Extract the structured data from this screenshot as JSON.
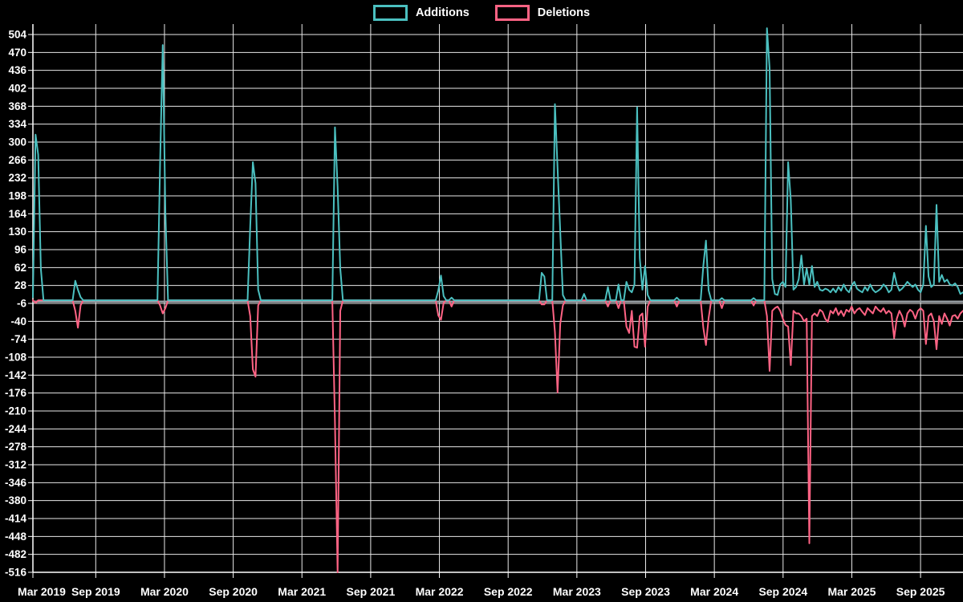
{
  "legend": {
    "items": [
      {
        "label": "Additions",
        "color": "#4BC0C0"
      },
      {
        "label": "Deletions",
        "color": "#FF6384"
      }
    ]
  },
  "colors": {
    "background": "#000000",
    "grid": "#e8e8e8",
    "axis": "#ffffff",
    "zero_line": "#9aa1a6",
    "text": "#ffffff",
    "additions": "#4BC0C0",
    "deletions": "#FF6384"
  },
  "chart_data": {
    "type": "line",
    "title": "",
    "xlabel": "",
    "ylabel": "",
    "legend_position": "top-center",
    "grid": true,
    "x_axis": {
      "tick_labels": [
        "Mar 2019",
        "Sep 2019",
        "Mar 2020",
        "Sep 2020",
        "Mar 2021",
        "Sep 2021",
        "Mar 2022",
        "Sep 2022",
        "Mar 2023",
        "Sep 2023",
        "Mar 2024",
        "Sep 2024",
        "Mar 2025",
        "Sep 2025"
      ],
      "unit": "week",
      "weeks_total": 352
    },
    "y_axis": {
      "tick_labels": [
        504,
        470,
        436,
        402,
        368,
        334,
        300,
        266,
        232,
        198,
        164,
        130,
        96,
        62,
        28,
        -6,
        -40,
        -74,
        -108,
        -142,
        -176,
        -210,
        -244,
        -278,
        -312,
        -346,
        -380,
        -414,
        -448,
        -482,
        -516
      ],
      "min": -516,
      "max": 504,
      "step": 34
    },
    "baseline": 0,
    "series": [
      {
        "name": "Additions",
        "color": "#4BC0C0",
        "default_value": 0,
        "points": [
          [
            0,
            6
          ],
          [
            1,
            314
          ],
          [
            2,
            276
          ],
          [
            3,
            60
          ],
          [
            16,
            37
          ],
          [
            17,
            20
          ],
          [
            18,
            6
          ],
          [
            48,
            260
          ],
          [
            49,
            484
          ],
          [
            50,
            166
          ],
          [
            82,
            140
          ],
          [
            83,
            262
          ],
          [
            84,
            222
          ],
          [
            85,
            20
          ],
          [
            114,
            328
          ],
          [
            115,
            215
          ],
          [
            116,
            60
          ],
          [
            153,
            19
          ],
          [
            154,
            47
          ],
          [
            155,
            8
          ],
          [
            158,
            5
          ],
          [
            192,
            52
          ],
          [
            193,
            45
          ],
          [
            197,
            372
          ],
          [
            198,
            250
          ],
          [
            199,
            131
          ],
          [
            200,
            10
          ],
          [
            208,
            12
          ],
          [
            217,
            25
          ],
          [
            221,
            30
          ],
          [
            224,
            35
          ],
          [
            225,
            20
          ],
          [
            226,
            15
          ],
          [
            227,
            30
          ],
          [
            228,
            366
          ],
          [
            229,
            80
          ],
          [
            230,
            20
          ],
          [
            231,
            65
          ],
          [
            232,
            10
          ],
          [
            243,
            5
          ],
          [
            253,
            65
          ],
          [
            254,
            113
          ],
          [
            255,
            19
          ],
          [
            260,
            4
          ],
          [
            272,
            4
          ],
          [
            277,
            516
          ],
          [
            278,
            440
          ],
          [
            279,
            40
          ],
          [
            280,
            12
          ],
          [
            281,
            10
          ],
          [
            282,
            30
          ],
          [
            283,
            35
          ],
          [
            284,
            25
          ],
          [
            285,
            262
          ],
          [
            286,
            190
          ],
          [
            287,
            20
          ],
          [
            288,
            25
          ],
          [
            289,
            40
          ],
          [
            290,
            85
          ],
          [
            291,
            30
          ],
          [
            292,
            60
          ],
          [
            293,
            30
          ],
          [
            294,
            65
          ],
          [
            295,
            25
          ],
          [
            296,
            35
          ],
          [
            297,
            20
          ],
          [
            298,
            18
          ],
          [
            299,
            22
          ],
          [
            300,
            20
          ],
          [
            301,
            15
          ],
          [
            302,
            22
          ],
          [
            303,
            15
          ],
          [
            304,
            25
          ],
          [
            305,
            18
          ],
          [
            306,
            30
          ],
          [
            307,
            20
          ],
          [
            308,
            15
          ],
          [
            309,
            28
          ],
          [
            310,
            35
          ],
          [
            311,
            22
          ],
          [
            312,
            18
          ],
          [
            313,
            15
          ],
          [
            314,
            25
          ],
          [
            315,
            18
          ],
          [
            316,
            30
          ],
          [
            317,
            20
          ],
          [
            318,
            15
          ],
          [
            319,
            18
          ],
          [
            320,
            22
          ],
          [
            321,
            30
          ],
          [
            322,
            25
          ],
          [
            323,
            15
          ],
          [
            324,
            20
          ],
          [
            325,
            52
          ],
          [
            326,
            30
          ],
          [
            327,
            18
          ],
          [
            328,
            22
          ],
          [
            329,
            28
          ],
          [
            330,
            35
          ],
          [
            331,
            30
          ],
          [
            332,
            25
          ],
          [
            333,
            30
          ],
          [
            334,
            20
          ],
          [
            335,
            15
          ],
          [
            336,
            30
          ],
          [
            337,
            141
          ],
          [
            338,
            45
          ],
          [
            339,
            25
          ],
          [
            340,
            30
          ],
          [
            341,
            181
          ],
          [
            342,
            35
          ],
          [
            343,
            48
          ],
          [
            344,
            35
          ],
          [
            345,
            39
          ],
          [
            346,
            30
          ],
          [
            347,
            28
          ],
          [
            348,
            32
          ],
          [
            349,
            25
          ],
          [
            350,
            12
          ],
          [
            351,
            15
          ]
        ]
      },
      {
        "name": "Deletions",
        "color": "#FF6384",
        "default_value": 0,
        "points": [
          [
            1,
            -5
          ],
          [
            16,
            -20
          ],
          [
            17,
            -52
          ],
          [
            18,
            -10
          ],
          [
            48,
            -10
          ],
          [
            49,
            -25
          ],
          [
            50,
            -15
          ],
          [
            82,
            -30
          ],
          [
            83,
            -131
          ],
          [
            84,
            -145
          ],
          [
            85,
            -10
          ],
          [
            114,
            -232
          ],
          [
            115,
            -516
          ],
          [
            116,
            -20
          ],
          [
            153,
            -29
          ],
          [
            154,
            -37
          ],
          [
            155,
            -5
          ],
          [
            158,
            -12
          ],
          [
            192,
            -8
          ],
          [
            193,
            -8
          ],
          [
            197,
            -60
          ],
          [
            198,
            -175
          ],
          [
            199,
            -45
          ],
          [
            200,
            -10
          ],
          [
            217,
            -12
          ],
          [
            221,
            -15
          ],
          [
            224,
            -50
          ],
          [
            225,
            -62
          ],
          [
            226,
            -20
          ],
          [
            227,
            -88
          ],
          [
            228,
            -90
          ],
          [
            229,
            -30
          ],
          [
            230,
            -25
          ],
          [
            231,
            -88
          ],
          [
            232,
            -12
          ],
          [
            243,
            -12
          ],
          [
            253,
            -52
          ],
          [
            254,
            -85
          ],
          [
            255,
            -34
          ],
          [
            260,
            -15
          ],
          [
            272,
            -10
          ],
          [
            277,
            -30
          ],
          [
            278,
            -134
          ],
          [
            279,
            -20
          ],
          [
            280,
            -15
          ],
          [
            281,
            -12
          ],
          [
            282,
            -20
          ],
          [
            283,
            -35
          ],
          [
            284,
            -47
          ],
          [
            285,
            -50
          ],
          [
            286,
            -123
          ],
          [
            287,
            -20
          ],
          [
            288,
            -25
          ],
          [
            289,
            -25
          ],
          [
            290,
            -30
          ],
          [
            291,
            -40
          ],
          [
            292,
            -35
          ],
          [
            293,
            -461
          ],
          [
            294,
            -30
          ],
          [
            295,
            -25
          ],
          [
            296,
            -30
          ],
          [
            297,
            -18
          ],
          [
            298,
            -22
          ],
          [
            299,
            -35
          ],
          [
            300,
            -41
          ],
          [
            301,
            -20
          ],
          [
            302,
            -25
          ],
          [
            303,
            -15
          ],
          [
            304,
            -28
          ],
          [
            305,
            -20
          ],
          [
            306,
            -30
          ],
          [
            307,
            -18
          ],
          [
            308,
            -22
          ],
          [
            309,
            -12
          ],
          [
            310,
            -25
          ],
          [
            311,
            -18
          ],
          [
            312,
            -15
          ],
          [
            313,
            -22
          ],
          [
            314,
            -28
          ],
          [
            315,
            -15
          ],
          [
            316,
            -20
          ],
          [
            317,
            -25
          ],
          [
            318,
            -12
          ],
          [
            319,
            -18
          ],
          [
            320,
            -22
          ],
          [
            321,
            -15
          ],
          [
            322,
            -25
          ],
          [
            323,
            -20
          ],
          [
            324,
            -25
          ],
          [
            325,
            -72
          ],
          [
            326,
            -35
          ],
          [
            327,
            -20
          ],
          [
            328,
            -30
          ],
          [
            329,
            -50
          ],
          [
            330,
            -25
          ],
          [
            331,
            -18
          ],
          [
            332,
            -22
          ],
          [
            333,
            -35
          ],
          [
            334,
            -20
          ],
          [
            335,
            -15
          ],
          [
            336,
            -20
          ],
          [
            337,
            -83
          ],
          [
            338,
            -30
          ],
          [
            339,
            -25
          ],
          [
            340,
            -40
          ],
          [
            341,
            -93
          ],
          [
            342,
            -30
          ],
          [
            343,
            -45
          ],
          [
            344,
            -25
          ],
          [
            345,
            -35
          ],
          [
            346,
            -48
          ],
          [
            347,
            -30
          ],
          [
            348,
            -28
          ],
          [
            349,
            -35
          ],
          [
            350,
            -25
          ],
          [
            351,
            -20
          ]
        ]
      }
    ]
  }
}
